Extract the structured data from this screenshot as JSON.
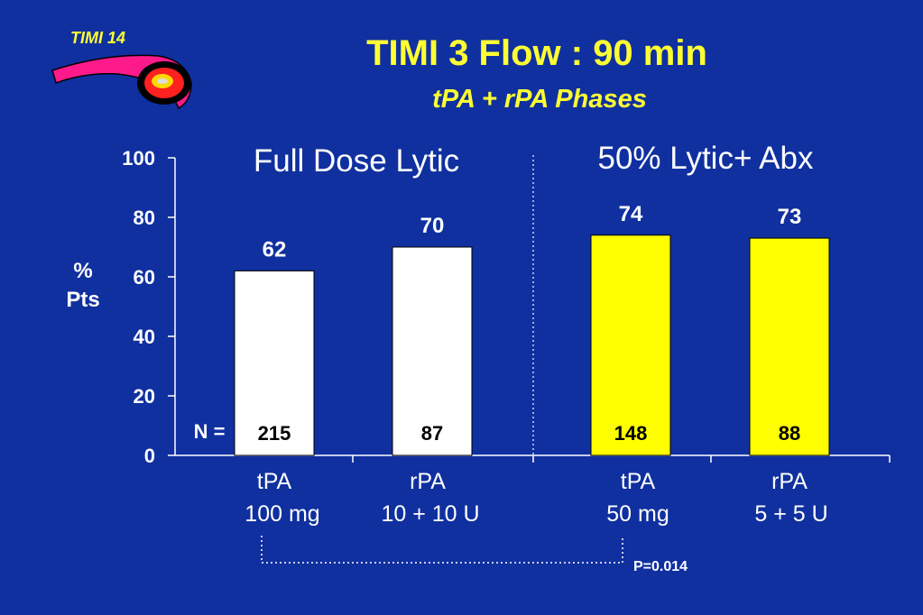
{
  "logo": {
    "text": "TIMI 14"
  },
  "title": "TIMI  3 Flow : 90 min",
  "subtitle": "tPA + rPA Phases",
  "panels": [
    {
      "label": "Full Dose Lytic"
    },
    {
      "label": "50% Lytic+ Abx"
    }
  ],
  "n_label": "N =",
  "p_value": "P=0.014",
  "colors": {
    "background": "#1030a0",
    "white_bar": "#ffffff",
    "yellow_bar": "#ffff00",
    "title": "#ffff33"
  },
  "chart_data": {
    "type": "bar",
    "title": "TIMI  3 Flow : 90 min",
    "ylabel": "% Pts",
    "ylim": [
      0,
      100
    ],
    "yticks": [
      0,
      20,
      40,
      60,
      80,
      100
    ],
    "categories": [
      {
        "line1": "tPA",
        "line2": "100 mg"
      },
      {
        "line1": "rPA",
        "line2": "10 + 10 U"
      },
      {
        "line1": "tPA",
        "line2": "50 mg"
      },
      {
        "line1": "rPA",
        "line2": "5 + 5 U"
      }
    ],
    "values": [
      62,
      70,
      74,
      73
    ],
    "n": [
      "215",
      "87",
      "148",
      "88"
    ],
    "bar_colors": [
      "#ffffff",
      "#ffffff",
      "#ffff00",
      "#ffff00"
    ]
  }
}
